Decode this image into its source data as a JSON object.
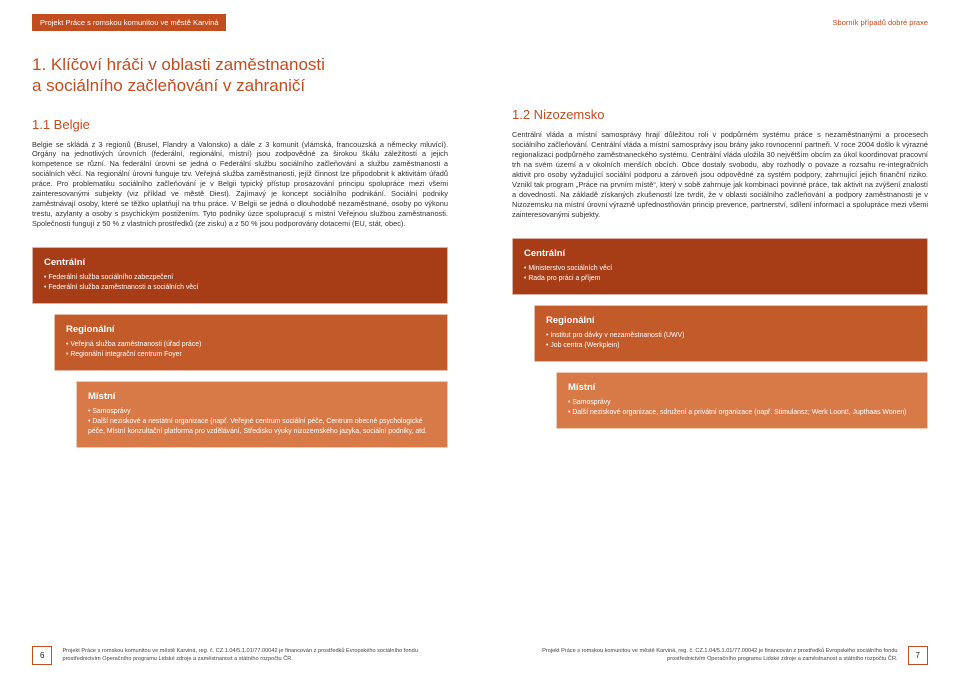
{
  "header": {
    "project_label": "Projekt Práce s romskou komunitou ve městě Karviná",
    "sbornik": "Sborník případů dobré praxe"
  },
  "main_title_line1": "1. Klíčoví hráči v oblasti zaměstnanosti",
  "main_title_line2": "a sociálního začleňování v zahraničí",
  "belgium": {
    "heading": "1.1 Belgie",
    "text": "Belgie se skládá z 3 regionů (Brusel, Flandry a Valonsko) a dále z 3 komunit (vlámská, francouzská a německy mluvící). Orgány na jednotlivých úrovních (federální, regionální, místní) jsou zodpovědné za širokou škálu záležitostí a jejich kompetence se různí. Na federální úrovni se jedná o Federální službu sociálního začleňování a službu zaměstnanosti a sociálních věcí. Na regionální úrovni funguje tzv. Veřejná služba zaměstnanosti, jejíž činnost lze připodobnit k aktivitám úřadů práce. Pro problematiku sociálního začleňování je v Belgii typický přístup prosazování principu spolupráce mezi všemi zainteresovanými subjekty (viz příklad ve městě Diest). Zajímavý je koncept sociálního podnikání. Sociální podniky zaměstnávají osoby, které se těžko uplatňují na trhu práce. V Belgii se jedná o dlouhodobě nezaměstnané, osoby po výkonu trestu, azylanty a osoby s psychickým postižením. Tyto podniky úzce spolupracují s místní Veřejnou službou zaměstnanosti. Společnosti fungují z 50 % z vlastních prostředků (ze zisku) a z 50 % jsou podporovány dotacemi (EU, stát, obec).",
    "central": {
      "title": "Centrální",
      "items": [
        "Federální služba sociálního zabezpečení",
        "Federální služba zaměstnanosti a sociálních věcí"
      ]
    },
    "regional": {
      "title": "Regionální",
      "items": [
        "Veřejná služba zaměstnanosti (úřad práce)",
        "Regionální integrační centrum Foyer"
      ]
    },
    "local": {
      "title": "Místní",
      "items": [
        "Samosprávy",
        "Další neziskové a nestátní organizace (např. Veřejné centrum sociální péče, Centrum obecné psychologické péče, Místní konzultační platforma pro vzdělávání, Středisko výuky nizozemského jazyka, sociální podniky, atd."
      ]
    }
  },
  "netherlands": {
    "heading": "1.2 Nizozemsko",
    "text": "Centrální vláda a místní samosprávy hrají důležitou roli v podpůrném systému práce s nezaměstnanými a procesech sociálního začleňování. Centrální vláda a místní samosprávy jsou brány jako rovnocenní partneři. V roce 2004 došlo k výrazné regionalizaci podpůrného zaměstnaneckého systému. Centrální vláda uložila 30 největším obcím za úkol koordinovat pracovní trh na svém území a v okolních menších obcích. Obce dostaly svobodu, aby rozhodly o povaze a rozsahu re-integračních aktivit pro osoby vyžadující sociální podporu a zároveň jsou odpovědné za systém podpory, zahrnující jejich finanční riziko. Vznikl tak program „Práce na prvním místě“, který v sobě zahrnuje jak kombinaci povinné práce, tak aktivit na zvýšení znalostí a dovedností. Na základě získaných zkušeností lze tvrdit, že v oblasti sociálního začleňování a podpory zaměstnanosti je v Nizozemsku na místní úrovni výrazně upřednostňován princip prevence, partnerství, sdílení informací a spolupráce mezi všemi zainteresovanými subjekty.",
    "central": {
      "title": "Centrální",
      "items": [
        "Ministerstvo sociálních věcí",
        "Rada pro práci a příjem"
      ]
    },
    "regional": {
      "title": "Regionální",
      "items": [
        "Institut pro dávky v nezaměstnanosti (UWV)",
        "Job centra (Werkplein)"
      ]
    },
    "local": {
      "title": "Místní",
      "items": [
        "Samosprávy",
        "Další neziskové organizace, sdružení a privátní organizace (např. Stimulansz; Werk Loont!, Jupthaas Wonen)"
      ]
    }
  },
  "footer": {
    "text": "Projekt Práce s romskou komunitou ve městě Karviná, reg. č. CZ.1.04/5.1.01/77.00042 je financován z prostředků Evropského sociálního fondu prostřednictvím Operačního programu Lidské zdroje a zaměstnanost a státního rozpočtu ČR.",
    "page_left": "6",
    "page_right": "7"
  },
  "colors": {
    "brand": "#c24d1f",
    "box_central": "#a63d16",
    "box_regional": "#c25a2a",
    "box_local": "#d77a48"
  }
}
